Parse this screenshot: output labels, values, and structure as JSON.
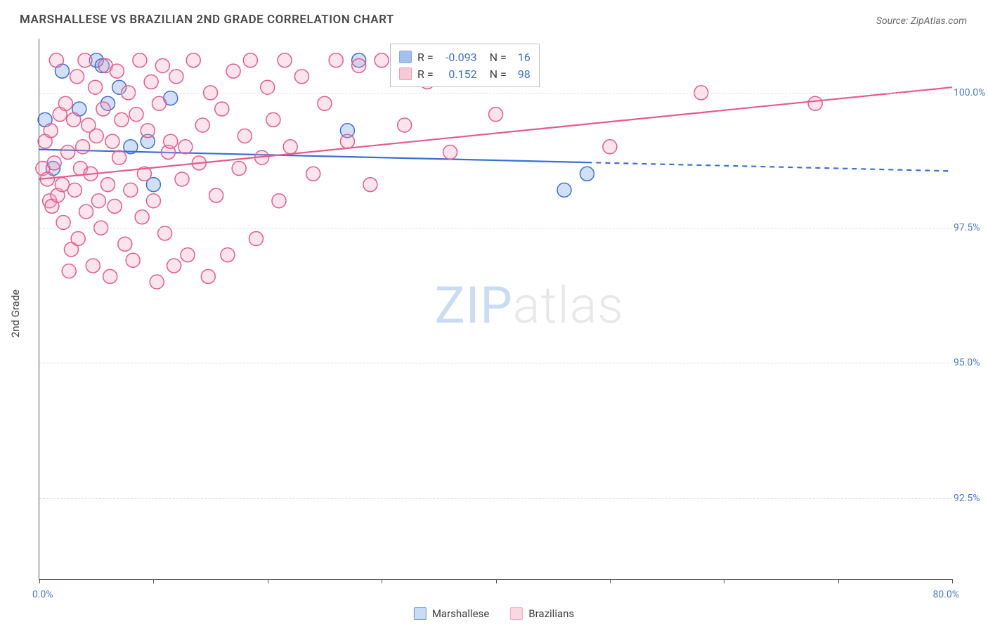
{
  "title": "MARSHALLESE VS BRAZILIAN 2ND GRADE CORRELATION CHART",
  "source": "Source: ZipAtlas.com",
  "yaxis_title": "2nd Grade",
  "watermark": {
    "bold": "ZIP",
    "light": "atlas"
  },
  "chart": {
    "type": "scatter-with-regression",
    "xlim": [
      0,
      80
    ],
    "ylim": [
      91,
      101
    ],
    "x_tick_step": 10,
    "x_min_label": "0.0%",
    "x_max_label": "80.0%",
    "y_ticks": [
      92.5,
      95.0,
      97.5,
      100.0
    ],
    "y_tick_labels": [
      "92.5%",
      "95.0%",
      "97.5%",
      "100.0%"
    ],
    "grid_color": "#dcdcdc",
    "axis_color": "#555555",
    "tick_label_color": "#4a7bd0",
    "background_color": "#ffffff",
    "marker_radius": 10,
    "marker_fill_opacity": 0.3,
    "marker_stroke_width": 1.5,
    "line_width": 2.2,
    "series": [
      {
        "name": "Marshallese",
        "color": "#6699e0",
        "stroke": "#3b6fd6",
        "R": "-0.093",
        "N": "16",
        "regression": {
          "x1": 0,
          "y1": 98.95,
          "x2": 80,
          "y2": 98.55,
          "solid_until_x": 48
        },
        "points": [
          [
            0.5,
            99.5
          ],
          [
            1.2,
            98.6
          ],
          [
            2.0,
            100.4
          ],
          [
            3.5,
            99.7
          ],
          [
            5.0,
            100.6
          ],
          [
            5.5,
            100.5
          ],
          [
            6.0,
            99.8
          ],
          [
            7.0,
            100.1
          ],
          [
            8.0,
            99.0
          ],
          [
            9.5,
            99.1
          ],
          [
            10.0,
            98.3
          ],
          [
            11.5,
            99.9
          ],
          [
            27.0,
            99.3
          ],
          [
            28.0,
            100.6
          ],
          [
            46.0,
            98.2
          ],
          [
            48.0,
            98.5
          ]
        ]
      },
      {
        "name": "Brazilians",
        "color": "#f3a6bd",
        "stroke": "#e75a8b",
        "R": "0.152",
        "N": "98",
        "regression": {
          "x1": 0,
          "y1": 98.4,
          "x2": 80,
          "y2": 100.1,
          "solid_until_x": 80
        },
        "points": [
          [
            0.3,
            98.6
          ],
          [
            0.5,
            99.1
          ],
          [
            0.7,
            98.4
          ],
          [
            0.9,
            98.0
          ],
          [
            1.0,
            99.3
          ],
          [
            1.1,
            97.9
          ],
          [
            1.3,
            98.7
          ],
          [
            1.5,
            100.6
          ],
          [
            1.6,
            98.1
          ],
          [
            1.8,
            99.6
          ],
          [
            2.0,
            98.3
          ],
          [
            2.1,
            97.6
          ],
          [
            2.3,
            99.8
          ],
          [
            2.5,
            98.9
          ],
          [
            2.6,
            96.7
          ],
          [
            2.8,
            97.1
          ],
          [
            3.0,
            99.5
          ],
          [
            3.1,
            98.2
          ],
          [
            3.3,
            100.3
          ],
          [
            3.4,
            97.3
          ],
          [
            3.6,
            98.6
          ],
          [
            3.8,
            99.0
          ],
          [
            4.0,
            100.6
          ],
          [
            4.1,
            97.8
          ],
          [
            4.3,
            99.4
          ],
          [
            4.5,
            98.5
          ],
          [
            4.7,
            96.8
          ],
          [
            4.9,
            100.1
          ],
          [
            5.0,
            99.2
          ],
          [
            5.2,
            98.0
          ],
          [
            5.4,
            97.5
          ],
          [
            5.6,
            99.7
          ],
          [
            5.8,
            100.5
          ],
          [
            6.0,
            98.3
          ],
          [
            6.2,
            96.6
          ],
          [
            6.4,
            99.1
          ],
          [
            6.6,
            97.9
          ],
          [
            6.8,
            100.4
          ],
          [
            7.0,
            98.8
          ],
          [
            7.2,
            99.5
          ],
          [
            7.5,
            97.2
          ],
          [
            7.8,
            100.0
          ],
          [
            8.0,
            98.2
          ],
          [
            8.2,
            96.9
          ],
          [
            8.5,
            99.6
          ],
          [
            8.8,
            100.6
          ],
          [
            9.0,
            97.7
          ],
          [
            9.2,
            98.5
          ],
          [
            9.5,
            99.3
          ],
          [
            9.8,
            100.2
          ],
          [
            10.0,
            98.0
          ],
          [
            10.3,
            96.5
          ],
          [
            10.5,
            99.8
          ],
          [
            10.8,
            100.5
          ],
          [
            11.0,
            97.4
          ],
          [
            11.3,
            98.9
          ],
          [
            11.5,
            99.1
          ],
          [
            11.8,
            96.8
          ],
          [
            12.0,
            100.3
          ],
          [
            12.5,
            98.4
          ],
          [
            12.8,
            99.0
          ],
          [
            13.0,
            97.0
          ],
          [
            13.5,
            100.6
          ],
          [
            14.0,
            98.7
          ],
          [
            14.3,
            99.4
          ],
          [
            14.8,
            96.6
          ],
          [
            15.0,
            100.0
          ],
          [
            15.5,
            98.1
          ],
          [
            16.0,
            99.7
          ],
          [
            16.5,
            97.0
          ],
          [
            17.0,
            100.4
          ],
          [
            17.5,
            98.6
          ],
          [
            18.0,
            99.2
          ],
          [
            18.5,
            100.6
          ],
          [
            19.0,
            97.3
          ],
          [
            19.5,
            98.8
          ],
          [
            20.0,
            100.1
          ],
          [
            20.5,
            99.5
          ],
          [
            21.0,
            98.0
          ],
          [
            21.5,
            100.6
          ],
          [
            22.0,
            99.0
          ],
          [
            23.0,
            100.3
          ],
          [
            24.0,
            98.5
          ],
          [
            25.0,
            99.8
          ],
          [
            26.0,
            100.6
          ],
          [
            27.0,
            99.1
          ],
          [
            28.0,
            100.5
          ],
          [
            29.0,
            98.3
          ],
          [
            30.0,
            100.6
          ],
          [
            32.0,
            99.4
          ],
          [
            34.0,
            100.2
          ],
          [
            36.0,
            98.9
          ],
          [
            38.0,
            100.6
          ],
          [
            40.0,
            99.6
          ],
          [
            43.0,
            100.5
          ],
          [
            50.0,
            99.0
          ],
          [
            58.0,
            100.0
          ],
          [
            68.0,
            99.8
          ]
        ]
      }
    ]
  },
  "bottom_legend": [
    {
      "swatch_fill": "#c9dcf3",
      "swatch_stroke": "#6699e0",
      "label": "Marshallese"
    },
    {
      "swatch_fill": "#fbd7e2",
      "swatch_stroke": "#f3a6bd",
      "label": "Brazilians"
    }
  ]
}
